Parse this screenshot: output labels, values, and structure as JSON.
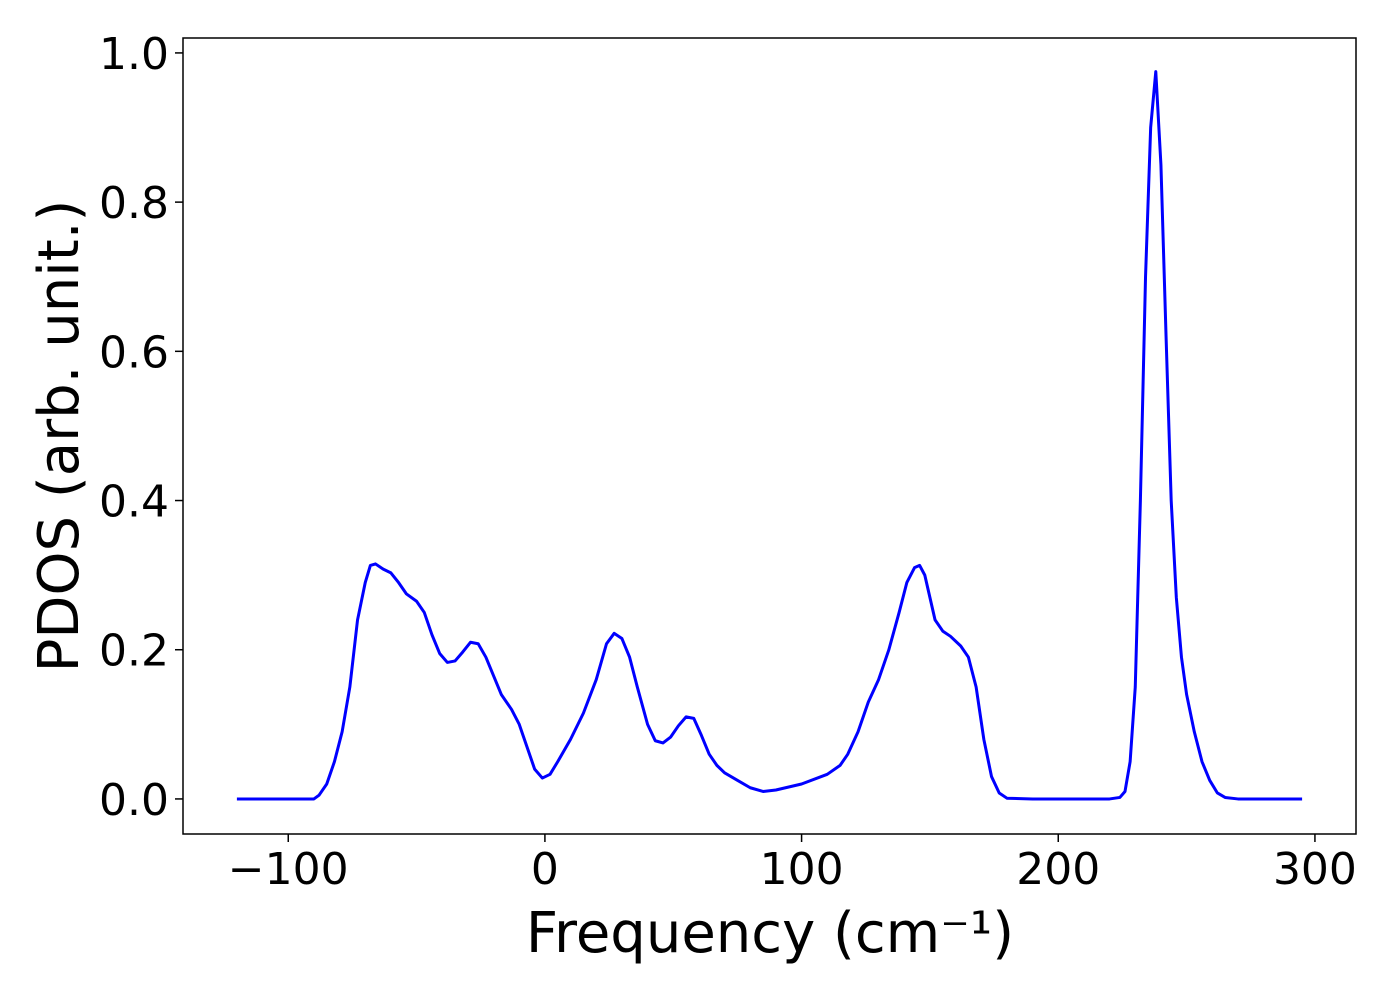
{
  "chart_data": {
    "type": "line",
    "x_label": "Frequency (cm⁻¹)",
    "y_label": "PDOS (arb. unit.)",
    "color": "#0000ff",
    "x": [
      -120,
      -110,
      -100,
      -90,
      -88,
      -85,
      -82,
      -79,
      -76,
      -73,
      -70,
      -68,
      -66,
      -63,
      -60,
      -57,
      -54,
      -50,
      -47,
      -44,
      -41,
      -38,
      -35,
      -32,
      -29,
      -26,
      -23,
      -20,
      -17,
      -13,
      -10,
      -7,
      -4,
      -1,
      2,
      5,
      10,
      15,
      20,
      24,
      27,
      30,
      33,
      36,
      40,
      43,
      46,
      49,
      52,
      55,
      58,
      61,
      64,
      67,
      70,
      75,
      80,
      85,
      90,
      100,
      110,
      115,
      118,
      122,
      126,
      130,
      134,
      138,
      141,
      144,
      146,
      148,
      150,
      152,
      155,
      158,
      162,
      165,
      168,
      171,
      174,
      177,
      180,
      190,
      200,
      210,
      220,
      224,
      226,
      228,
      230,
      232,
      234,
      236,
      238,
      240,
      242,
      244,
      246,
      248,
      250,
      253,
      256,
      259,
      262,
      265,
      270,
      280,
      295
    ],
    "values": [
      0,
      0,
      0,
      0,
      0.005,
      0.02,
      0.05,
      0.09,
      0.15,
      0.24,
      0.29,
      0.313,
      0.315,
      0.308,
      0.303,
      0.29,
      0.275,
      0.265,
      0.25,
      0.22,
      0.195,
      0.183,
      0.185,
      0.197,
      0.21,
      0.208,
      0.19,
      0.165,
      0.14,
      0.12,
      0.1,
      0.07,
      0.04,
      0.028,
      0.033,
      0.05,
      0.08,
      0.115,
      0.16,
      0.208,
      0.222,
      0.215,
      0.19,
      0.15,
      0.1,
      0.078,
      0.075,
      0.083,
      0.098,
      0.11,
      0.108,
      0.085,
      0.06,
      0.045,
      0.035,
      0.025,
      0.015,
      0.01,
      0.012,
      0.02,
      0.033,
      0.045,
      0.06,
      0.09,
      0.13,
      0.16,
      0.2,
      0.25,
      0.29,
      0.31,
      0.313,
      0.3,
      0.27,
      0.24,
      0.225,
      0.218,
      0.205,
      0.19,
      0.15,
      0.08,
      0.03,
      0.008,
      0.001,
      0,
      0,
      0,
      0,
      0.002,
      0.01,
      0.05,
      0.15,
      0.4,
      0.7,
      0.9,
      0.975,
      0.85,
      0.62,
      0.4,
      0.27,
      0.19,
      0.14,
      0.09,
      0.05,
      0.025,
      0.008,
      0.002,
      0,
      0,
      0
    ],
    "xlim": [
      -141,
      316
    ],
    "xticks": [
      {
        "value": -100,
        "label": "−100"
      },
      0,
      100,
      200,
      300
    ],
    "ylim": [
      -0.047,
      1.02
    ],
    "yticks": [
      {
        "value": 0,
        "label": "0.0"
      },
      0.2,
      0.4,
      0.6,
      0.8,
      {
        "value": 1,
        "label": "1.0"
      }
    ]
  }
}
